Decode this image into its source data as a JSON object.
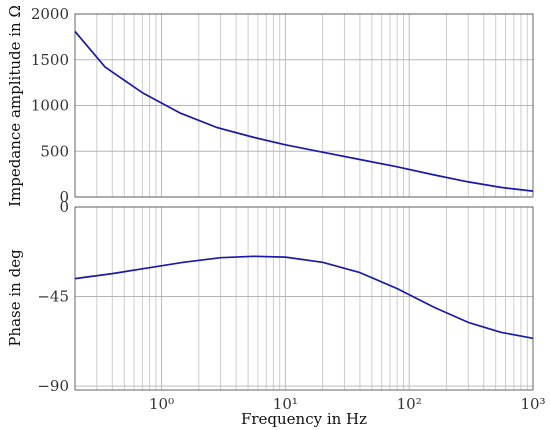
{
  "chart_data": [
    {
      "type": "line",
      "ylabel": "Impedance amplitude in Ω",
      "xscale": "log",
      "xlim": [
        0.2,
        1000
      ],
      "ylim": [
        0,
        2000
      ],
      "yticks": [
        0,
        500,
        1000,
        1500,
        2000
      ],
      "ytick_labels": [
        "0",
        "500",
        "1000",
        "1500",
        "2000"
      ],
      "grid": true,
      "series": [
        {
          "color": "#1a1aa8",
          "x": [
            0.2,
            0.35,
            0.7,
            1.4,
            2.8,
            5.6,
            10,
            20,
            40,
            80,
            160,
            300,
            550,
            1000
          ],
          "y": [
            1810,
            1420,
            1140,
            920,
            760,
            650,
            570,
            490,
            410,
            330,
            240,
            165,
            105,
            65
          ]
        }
      ]
    },
    {
      "type": "line",
      "xlabel": "Frequency in Hz",
      "ylabel": "Phase in deg",
      "xscale": "log",
      "xlim": [
        0.2,
        1000
      ],
      "ylim": [
        -92,
        0
      ],
      "xticks": [
        1,
        10,
        100,
        1000
      ],
      "xtick_labels": [
        "10⁰",
        "10¹",
        "10²",
        "10³"
      ],
      "yticks": [
        0,
        -45,
        -90
      ],
      "ytick_labels": [
        "0",
        "−45",
        "−90"
      ],
      "grid": true,
      "series": [
        {
          "color": "#1a1aa8",
          "x": [
            0.2,
            0.4,
            0.8,
            1.5,
            3,
            5.5,
            10,
            20,
            40,
            80,
            160,
            300,
            550,
            1000
          ],
          "y": [
            -36,
            -33.5,
            -30.5,
            -27.8,
            -25.5,
            -24.8,
            -25.2,
            -27.8,
            -33,
            -41,
            -50.5,
            -58,
            -63,
            -66
          ]
        }
      ]
    }
  ]
}
